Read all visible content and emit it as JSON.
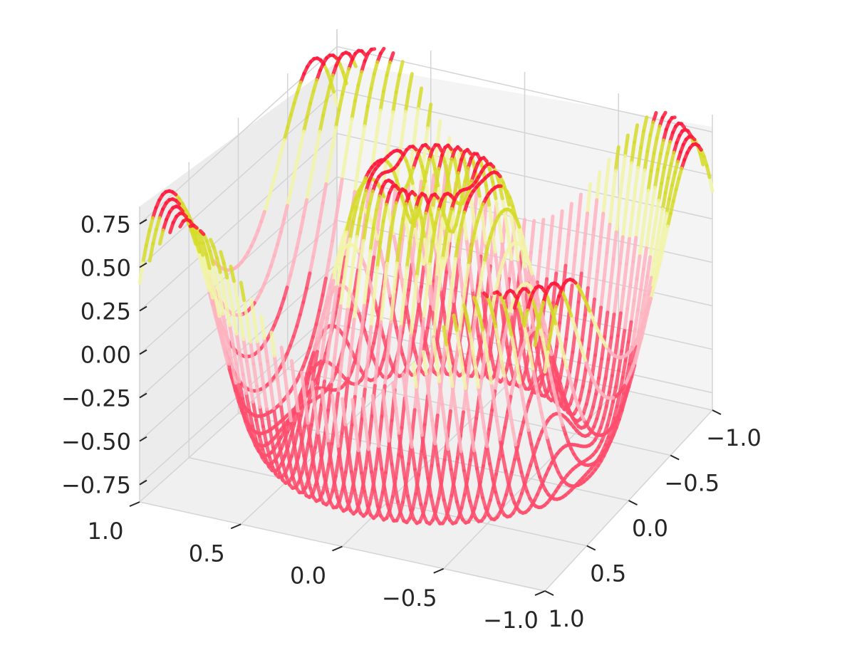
{
  "chart_data": {
    "type": "surface3d",
    "title": "",
    "xlabel": "",
    "ylabel": "",
    "zlabel": "",
    "x_ticks": [
      "−1.0",
      "−0.5",
      "0.0",
      "0.5",
      "1.0"
    ],
    "y_ticks": [
      "−1.0",
      "−0.5",
      "0.0",
      "0.5",
      "1.0"
    ],
    "z_ticks": [
      "0.75",
      "0.50",
      "0.25",
      "0.00",
      "−0.25",
      "−0.50",
      "−0.75"
    ],
    "xlim": [
      -1.0,
      1.0
    ],
    "ylim": [
      -1.0,
      1.0
    ],
    "zlim": [
      -0.85,
      0.85
    ],
    "grid": true,
    "surface": {
      "function": "z = sin(2*pi*sqrt(x^2+y^2)) * 0.8 (radial ripple)",
      "peak_z": 0.8,
      "trough_z": -0.8,
      "contour_levels": 40
    },
    "colors": {
      "contour_low": "#ff4d6d",
      "contour_mid": "#ffb3c0",
      "contour_high_light": "#f2f5a8",
      "contour_high": "#d6dc2a",
      "contour_peak": "#ff1a3c",
      "pane": "#f2f2f2",
      "gridline": "#d4d4d4",
      "text": "#262626"
    }
  }
}
